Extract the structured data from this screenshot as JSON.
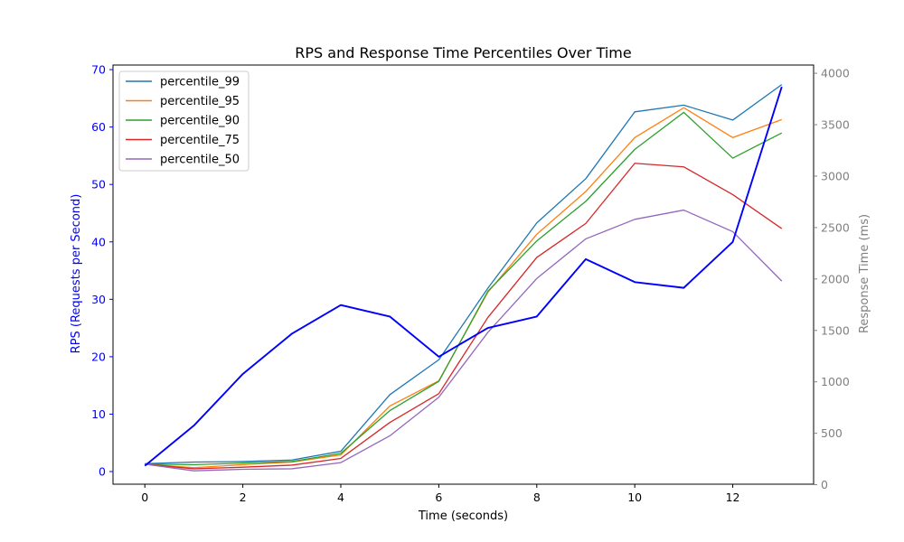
{
  "chart_data": {
    "type": "line",
    "title": "RPS and Response Time Percentiles Over Time",
    "xlabel": "Time (seconds)",
    "ylabel_left": "RPS (Requests per Second)",
    "ylabel_right": "Response Time (ms)",
    "x": [
      0,
      1,
      2,
      3,
      4,
      5,
      6,
      7,
      8,
      9,
      10,
      11,
      12,
      13
    ],
    "x_ticks": [
      "0",
      "2",
      "4",
      "6",
      "8",
      "10",
      "12"
    ],
    "xlim": [
      -0.65,
      13.65
    ],
    "left_axis": {
      "ylim": [
        -2.2,
        70.8
      ],
      "ticks": [
        "0",
        "10",
        "20",
        "30",
        "40",
        "50",
        "60",
        "70"
      ],
      "color": "#0000ff"
    },
    "right_axis": {
      "ylim": [
        5,
        4080
      ],
      "ticks": [
        "0",
        "500",
        "1000",
        "1500",
        "2000",
        "2500",
        "3000",
        "3500",
        "4000"
      ],
      "color": "#808080"
    },
    "rps_series": {
      "color": "#0000ff",
      "values": [
        1,
        8,
        17,
        24,
        29,
        27,
        20,
        25,
        27,
        37,
        33,
        32,
        40,
        67
      ]
    },
    "response_series": [
      {
        "name": "percentile_99",
        "color": "#1f77b4",
        "values": [
          205,
          220,
          225,
          240,
          325,
          875,
          1215,
          1910,
          2545,
          2975,
          3625,
          3690,
          3545,
          3890
        ]
      },
      {
        "name": "percentile_95",
        "color": "#ff7f0e",
        "values": [
          200,
          165,
          195,
          220,
          290,
          765,
          1010,
          1870,
          2435,
          2850,
          3375,
          3665,
          3375,
          3550
        ]
      },
      {
        "name": "percentile_90",
        "color": "#2ca02c",
        "values": [
          200,
          195,
          210,
          225,
          305,
          720,
          1005,
          1880,
          2370,
          2755,
          3260,
          3620,
          3175,
          3420
        ]
      },
      {
        "name": "percentile_75",
        "color": "#d62728",
        "values": [
          200,
          155,
          170,
          190,
          255,
          605,
          885,
          1625,
          2210,
          2540,
          3125,
          3090,
          2820,
          2490
        ]
      },
      {
        "name": "percentile_50",
        "color": "#9467bd",
        "values": [
          200,
          135,
          150,
          155,
          215,
          475,
          850,
          1480,
          2005,
          2390,
          2580,
          2670,
          2460,
          1980
        ]
      }
    ],
    "legend": [
      "percentile_99",
      "percentile_95",
      "percentile_90",
      "percentile_75",
      "percentile_50"
    ],
    "legend_position": "top-left",
    "grid": false
  }
}
